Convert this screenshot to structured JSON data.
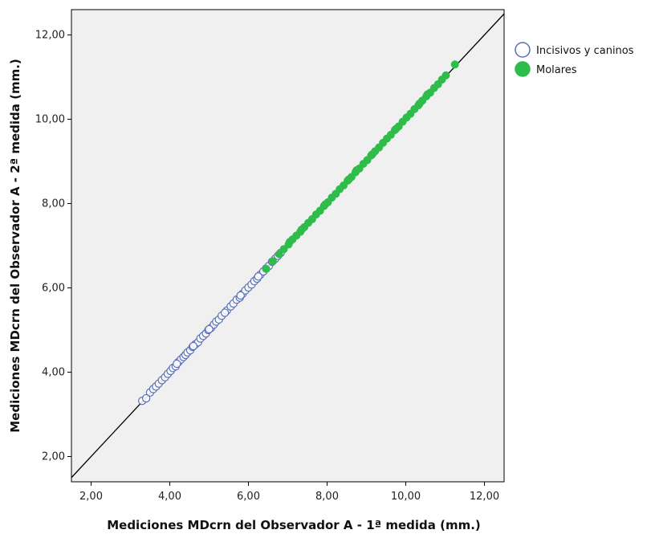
{
  "chart_data": {
    "type": "scatter",
    "xlabel": "Mediciones MDcrn del Observador A - 1ª medida (mm.)",
    "ylabel": "Mediciones MDcrn del Observador A - 2ª medida (mm.)",
    "xlim": [
      1.5,
      12.5
    ],
    "ylim": [
      1.4,
      12.6
    ],
    "x_ticks": [
      "2,00",
      "4,00",
      "6,00",
      "8,00",
      "10,00",
      "12,00"
    ],
    "y_ticks": [
      "2,00",
      "4,00",
      "6,00",
      "8,00",
      "10,00",
      "12,00"
    ],
    "x_tick_values": [
      2,
      4,
      6,
      8,
      10,
      12
    ],
    "y_tick_values": [
      2,
      4,
      6,
      8,
      10,
      12
    ],
    "background": "#f0f0f0",
    "reference_line": {
      "from": [
        1.5,
        1.5
      ],
      "to": [
        12.5,
        12.5
      ],
      "color": "#000000"
    },
    "legend_position": "right",
    "series": [
      {
        "name": "Incisivos y caninos",
        "marker": "hollow-circle",
        "color": "#5b6fb5",
        "points": [
          [
            3.3,
            3.32
          ],
          [
            3.4,
            3.38
          ],
          [
            3.5,
            3.52
          ],
          [
            3.58,
            3.6
          ],
          [
            3.65,
            3.66
          ],
          [
            3.72,
            3.73
          ],
          [
            3.8,
            3.81
          ],
          [
            3.88,
            3.88
          ],
          [
            3.95,
            3.96
          ],
          [
            4.02,
            4.03
          ],
          [
            4.08,
            4.1
          ],
          [
            4.15,
            4.14
          ],
          [
            4.22,
            4.24
          ],
          [
            4.28,
            4.3
          ],
          [
            4.35,
            4.36
          ],
          [
            4.4,
            4.41
          ],
          [
            4.45,
            4.47
          ],
          [
            4.52,
            4.52
          ],
          [
            4.58,
            4.6
          ],
          [
            4.65,
            4.66
          ],
          [
            4.72,
            4.71
          ],
          [
            4.78,
            4.8
          ],
          [
            4.85,
            4.86
          ],
          [
            4.92,
            4.92
          ],
          [
            4.98,
            5.0
          ],
          [
            5.05,
            5.05
          ],
          [
            5.12,
            5.13
          ],
          [
            5.18,
            5.2
          ],
          [
            5.25,
            5.25
          ],
          [
            5.32,
            5.34
          ],
          [
            5.45,
            5.46
          ],
          [
            5.55,
            5.56
          ],
          [
            5.62,
            5.63
          ],
          [
            5.7,
            5.72
          ],
          [
            5.78,
            5.77
          ],
          [
            5.85,
            5.86
          ],
          [
            5.92,
            5.94
          ],
          [
            6.0,
            6.01
          ],
          [
            6.08,
            6.08
          ],
          [
            6.15,
            6.16
          ],
          [
            6.22,
            6.22
          ],
          [
            6.3,
            6.31
          ],
          [
            6.38,
            6.39
          ],
          [
            6.45,
            6.46
          ],
          [
            6.52,
            6.52
          ],
          [
            6.6,
            6.62
          ],
          [
            6.68,
            6.69
          ],
          [
            6.75,
            6.76
          ],
          [
            6.82,
            6.83
          ],
          [
            4.18,
            4.2
          ],
          [
            4.6,
            4.62
          ],
          [
            5.0,
            5.02
          ],
          [
            5.4,
            5.41
          ],
          [
            5.8,
            5.82
          ],
          [
            6.25,
            6.27
          ]
        ]
      },
      {
        "name": "Molares",
        "marker": "filled-circle",
        "color": "#2ebd4a",
        "points": [
          [
            6.45,
            6.45
          ],
          [
            6.62,
            6.63
          ],
          [
            6.78,
            6.8
          ],
          [
            6.9,
            6.92
          ],
          [
            7.02,
            7.03
          ],
          [
            7.12,
            7.15
          ],
          [
            7.22,
            7.24
          ],
          [
            7.32,
            7.33
          ],
          [
            7.42,
            7.44
          ],
          [
            7.52,
            7.54
          ],
          [
            7.62,
            7.63
          ],
          [
            7.72,
            7.74
          ],
          [
            7.82,
            7.83
          ],
          [
            7.92,
            7.94
          ],
          [
            8.02,
            8.03
          ],
          [
            8.12,
            8.14
          ],
          [
            8.22,
            8.23
          ],
          [
            8.32,
            8.34
          ],
          [
            8.42,
            8.43
          ],
          [
            8.52,
            8.54
          ],
          [
            8.62,
            8.63
          ],
          [
            8.72,
            8.74
          ],
          [
            8.82,
            8.83
          ],
          [
            8.92,
            8.94
          ],
          [
            9.02,
            9.03
          ],
          [
            9.12,
            9.14
          ],
          [
            9.22,
            9.24
          ],
          [
            9.32,
            9.33
          ],
          [
            9.42,
            9.44
          ],
          [
            9.52,
            9.54
          ],
          [
            9.62,
            9.63
          ],
          [
            9.72,
            9.74
          ],
          [
            9.82,
            9.83
          ],
          [
            9.92,
            9.94
          ],
          [
            10.02,
            10.04
          ],
          [
            10.12,
            10.13
          ],
          [
            10.22,
            10.24
          ],
          [
            10.32,
            10.33
          ],
          [
            10.42,
            10.44
          ],
          [
            10.52,
            10.54
          ],
          [
            10.62,
            10.63
          ],
          [
            10.72,
            10.74
          ],
          [
            10.82,
            10.83
          ],
          [
            10.92,
            10.94
          ],
          [
            11.02,
            11.04
          ],
          [
            11.25,
            11.3
          ],
          [
            7.35,
            7.38
          ],
          [
            7.95,
            7.98
          ],
          [
            8.55,
            8.57
          ],
          [
            9.15,
            9.17
          ],
          [
            9.75,
            9.77
          ],
          [
            10.35,
            10.37
          ],
          [
            7.05,
            7.09
          ],
          [
            8.75,
            8.79
          ],
          [
            10.55,
            10.59
          ]
        ]
      }
    ]
  }
}
